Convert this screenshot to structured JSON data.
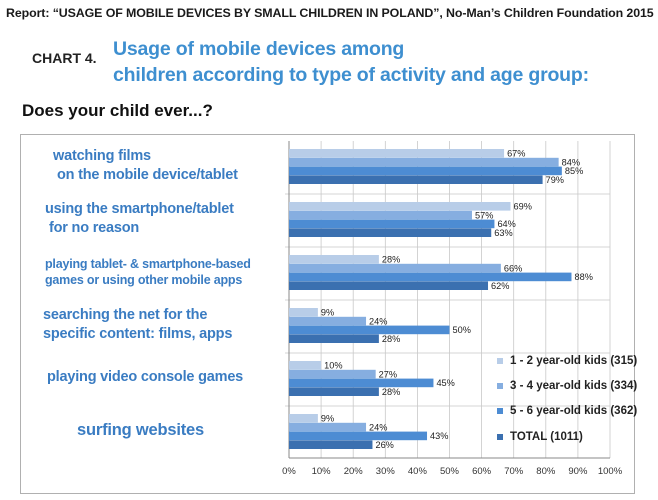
{
  "report_title": "Report: “USAGE OF MOBILE DEVICES BY SMALL CHILDREN IN POLAND”, No-Man’s Children Foundation 2015",
  "chart_label": "CHART 4.",
  "title_line1": "Usage of mobile devices among",
  "title_line2": "children according to type of activity and age group:",
  "question": "Does your child ever...?",
  "colors": {
    "title": "#3e8fd0",
    "series": [
      "#b8cde8",
      "#86aee0",
      "#4d8cd3",
      "#3b70b0"
    ]
  },
  "chart_data": {
    "type": "bar",
    "orientation": "horizontal",
    "categories": [
      {
        "line1": "watching films",
        "line2": "on the mobile device/tablet"
      },
      {
        "line1": "using the smartphone/tablet",
        "line2": "for no reason"
      },
      {
        "line1": "playing tablet- & smartphone-based",
        "line2": "games or using other mobile apps"
      },
      {
        "line1": "searching the net for the",
        "line2": "specific content: films, apps"
      },
      {
        "line1": "playing video console games",
        "line2": ""
      },
      {
        "line1": "surfing websites",
        "line2": ""
      }
    ],
    "series": [
      {
        "name": "1 - 2 year-old kids",
        "count": "(315)",
        "values": [
          67,
          69,
          28,
          9,
          10,
          9
        ]
      },
      {
        "name": "3 - 4 year-old kids",
        "count": "(334)",
        "values": [
          84,
          57,
          66,
          24,
          27,
          24
        ]
      },
      {
        "name": "5 - 6 year-old kids",
        "count": "(362)",
        "values": [
          85,
          64,
          88,
          50,
          45,
          43
        ]
      },
      {
        "name": "TOTAL (1011)",
        "count": "",
        "values": [
          79,
          63,
          62,
          28,
          28,
          26
        ]
      }
    ],
    "value_suffix": "%",
    "xlim": [
      0,
      100
    ],
    "x_ticks": [
      "0%",
      "10%",
      "20%",
      "30%",
      "40%",
      "50%",
      "60%",
      "70%",
      "80%",
      "90%",
      "100%"
    ],
    "grid": true,
    "legend_position": "bottom-right"
  }
}
